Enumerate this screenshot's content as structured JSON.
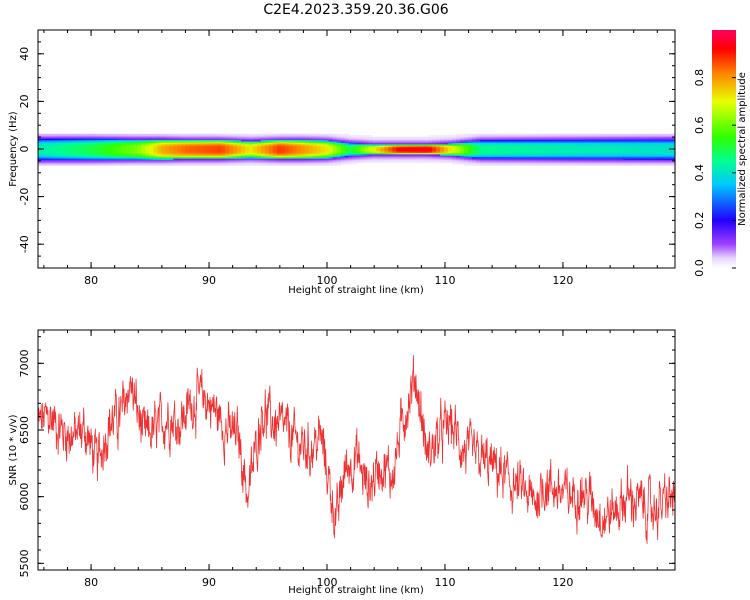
{
  "figure_title": "C2E4.2023.359.20.36.G06",
  "colors": {
    "snr_line": "#f03030",
    "background": "#ffffff",
    "axis": "#000000"
  },
  "chart_data": [
    {
      "type": "heatmap",
      "xlabel": "Height of straight line (km)",
      "ylabel": "Frequency (Hz)",
      "xlim": [
        75.5,
        129.5
      ],
      "ylim": [
        -50,
        50
      ],
      "xticks": [
        80,
        90,
        100,
        110,
        120
      ],
      "xtick_labels": [
        "80",
        "90",
        "100",
        "110",
        "120"
      ],
      "yticks": [
        -40,
        -20,
        0,
        20,
        40
      ],
      "ytick_labels": [
        "-40",
        "-20",
        "0",
        "20",
        "40"
      ],
      "colorbar": {
        "label": "Normalized spectral amplitude",
        "range": [
          0,
          1
        ],
        "ticks": [
          0.0,
          0.2,
          0.4,
          0.6,
          0.8
        ],
        "tick_labels": [
          "0.0",
          "0.2",
          "0.4",
          "0.6",
          "0.8"
        ],
        "colormap": "gist_rainbow_r"
      },
      "band": {
        "center_frequency_hz": 0,
        "half_width_hz": 5,
        "profile": [
          {
            "x": 75.5,
            "peak": 0.42,
            "width_hz": 4.2
          },
          {
            "x": 80,
            "peak": 0.5,
            "width_hz": 4.2
          },
          {
            "x": 84,
            "peak": 0.62,
            "width_hz": 4.0
          },
          {
            "x": 86,
            "peak": 0.78,
            "width_hz": 4.0
          },
          {
            "x": 88,
            "peak": 0.84,
            "width_hz": 3.8
          },
          {
            "x": 91,
            "peak": 0.87,
            "width_hz": 3.8
          },
          {
            "x": 93.5,
            "peak": 0.72,
            "width_hz": 3.4
          },
          {
            "x": 96,
            "peak": 0.88,
            "width_hz": 3.8
          },
          {
            "x": 98,
            "peak": 0.8,
            "width_hz": 3.8
          },
          {
            "x": 100,
            "peak": 0.72,
            "width_hz": 3.6
          },
          {
            "x": 102,
            "peak": 0.5,
            "width_hz": 2.6
          },
          {
            "x": 104,
            "peak": 0.72,
            "width_hz": 2.0
          },
          {
            "x": 106,
            "peak": 0.92,
            "width_hz": 2.0
          },
          {
            "x": 108.5,
            "peak": 0.95,
            "width_hz": 2.0
          },
          {
            "x": 110.5,
            "peak": 0.72,
            "width_hz": 2.4
          },
          {
            "x": 113,
            "peak": 0.45,
            "width_hz": 3.6
          },
          {
            "x": 120,
            "peak": 0.42,
            "width_hz": 3.8
          },
          {
            "x": 129.5,
            "peak": 0.4,
            "width_hz": 4.0
          }
        ]
      }
    },
    {
      "type": "line",
      "xlabel": "Height of straight line (km)",
      "ylabel": "SNR (10 * v/v)",
      "xlim": [
        75.5,
        129.5
      ],
      "ylim": [
        5450,
        7250
      ],
      "xticks": [
        80,
        90,
        100,
        110,
        120
      ],
      "xtick_labels": [
        "80",
        "90",
        "100",
        "110",
        "120"
      ],
      "yticks": [
        5500,
        6000,
        6500,
        7000
      ],
      "ytick_labels": [
        "5500",
        "6000",
        "6500",
        "7000"
      ],
      "series": [
        {
          "color": "#f03030",
          "x": [
            75.5,
            76.5,
            77.5,
            78.5,
            79.5,
            80.5,
            81.5,
            82.5,
            83.3,
            84.5,
            85.5,
            86.5,
            87.5,
            88.5,
            89.5,
            90.5,
            91.5,
            92.5,
            93.3,
            94.5,
            95.5,
            96.5,
            97.5,
            98.5,
            99.5,
            100.8,
            101.5,
            102.5,
            103.5,
            104.5,
            105.5,
            106.5,
            107.5,
            108.5,
            109.5,
            110.5,
            111.5,
            112.5,
            113.5,
            114.5,
            115.5,
            116.5,
            117.5,
            118.5,
            119.5,
            120.5,
            121.5,
            122.5,
            123.5,
            124.5,
            125.5,
            126.5,
            127.5,
            128.5,
            129.5
          ],
          "y": [
            6550,
            6600,
            6500,
            6450,
            6500,
            6250,
            6550,
            6600,
            6850,
            6450,
            6500,
            6600,
            6550,
            6700,
            6750,
            6650,
            6500,
            6450,
            6000,
            6650,
            6550,
            6500,
            6400,
            6350,
            6450,
            5800,
            6200,
            6300,
            6050,
            6250,
            6150,
            6600,
            6900,
            6300,
            6450,
            6550,
            6350,
            6300,
            6250,
            6200,
            6100,
            6050,
            5950,
            6100,
            6050,
            6000,
            6050,
            5950,
            5850,
            5900,
            6000,
            5950,
            5900,
            5950,
            6000
          ]
        }
      ]
    }
  ]
}
